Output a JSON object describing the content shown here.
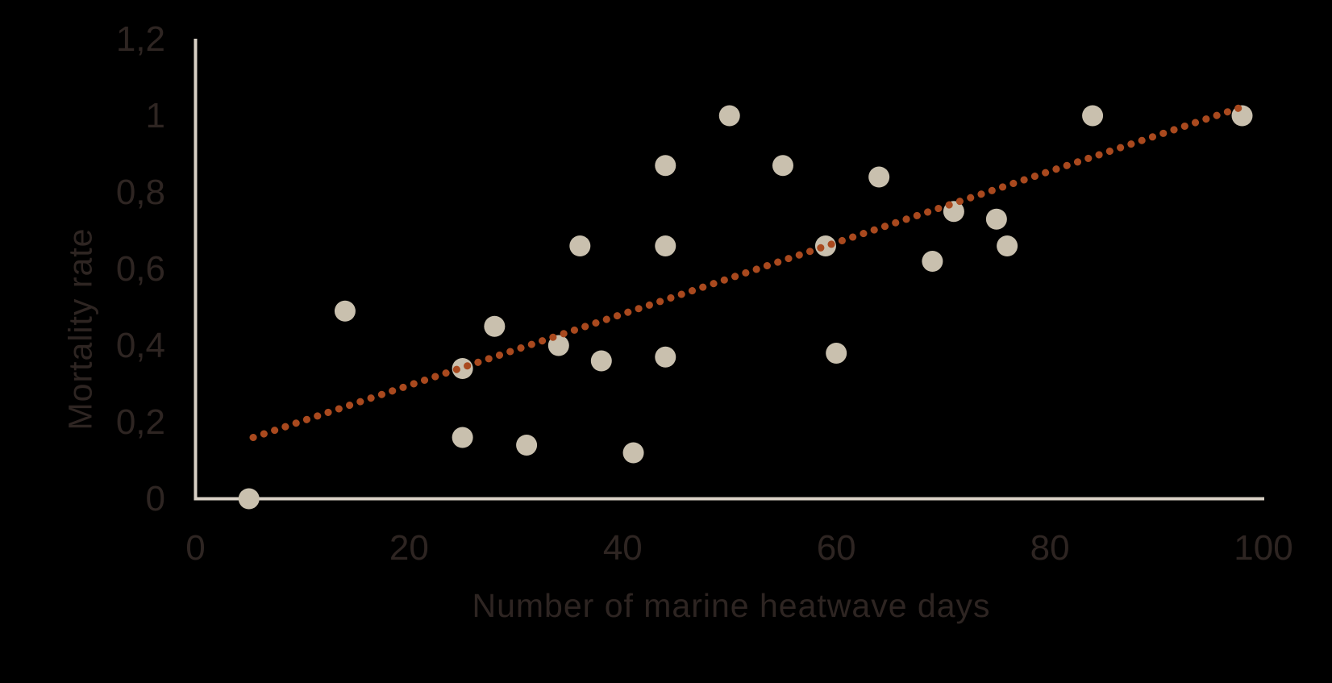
{
  "figure": {
    "background_color": "#000000",
    "text_color": "#2e2522",
    "axis_color": "#d8d0c5"
  },
  "chart_data": {
    "type": "scatter",
    "title": "",
    "xlabel": "Number of marine heatwave days",
    "ylabel": "Mortality rate",
    "xlim": [
      0,
      100
    ],
    "ylim": [
      0,
      1.2
    ],
    "grid": false,
    "legend": "none",
    "x_ticks": {
      "values": [
        0,
        20,
        40,
        60,
        80,
        100
      ],
      "labels": [
        "0",
        "20",
        "40",
        "60",
        "80",
        "100"
      ]
    },
    "y_ticks": {
      "values": [
        0,
        0.2,
        0.4,
        0.6,
        0.8,
        1.0,
        1.2
      ],
      "labels": [
        "0",
        "0,2",
        "0,4",
        "0,6",
        "0,8",
        "1",
        "1,2"
      ]
    },
    "point_color": "#c9c0ae",
    "point_radius_px": 13,
    "points": [
      {
        "x": 5,
        "y": 0
      },
      {
        "x": 14,
        "y": 0.49
      },
      {
        "x": 25,
        "y": 0.16
      },
      {
        "x": 25,
        "y": 0.34
      },
      {
        "x": 28,
        "y": 0.45
      },
      {
        "x": 31,
        "y": 0.14
      },
      {
        "x": 34,
        "y": 0.4
      },
      {
        "x": 36,
        "y": 0.66
      },
      {
        "x": 38,
        "y": 0.36
      },
      {
        "x": 41,
        "y": 0.12
      },
      {
        "x": 44,
        "y": 0.37
      },
      {
        "x": 44,
        "y": 0.87
      },
      {
        "x": 44,
        "y": 0.66
      },
      {
        "x": 50,
        "y": 1.0
      },
      {
        "x": 55,
        "y": 0.87
      },
      {
        "x": 59,
        "y": 0.66
      },
      {
        "x": 60,
        "y": 0.38
      },
      {
        "x": 64,
        "y": 0.84
      },
      {
        "x": 69,
        "y": 0.62
      },
      {
        "x": 71,
        "y": 0.75
      },
      {
        "x": 75,
        "y": 0.73
      },
      {
        "x": 76,
        "y": 0.66
      },
      {
        "x": 84,
        "y": 1.0
      },
      {
        "x": 98,
        "y": 1.0
      }
    ],
    "trendline": {
      "style": "dotted",
      "color": "#a9491e",
      "x_start": 5.4,
      "y_start": 0.16,
      "x_end": 97.7,
      "y_end": 1.02
    }
  }
}
